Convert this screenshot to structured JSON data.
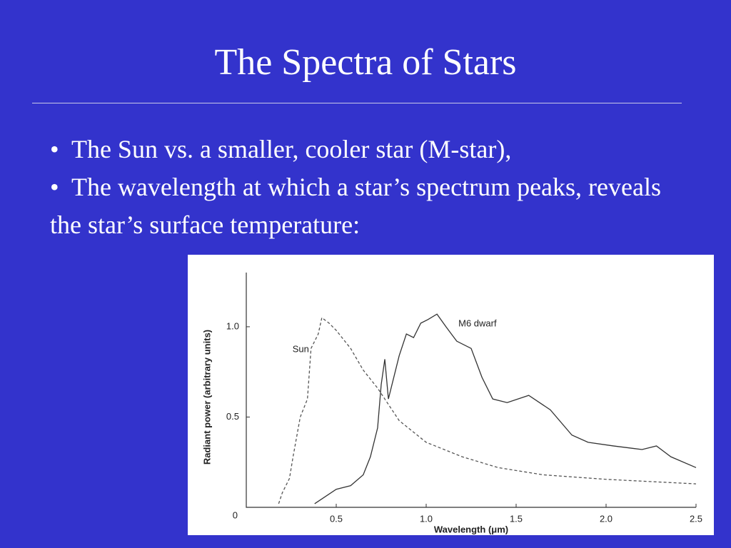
{
  "title": "The Spectra of Stars",
  "bullets": [
    "The Sun vs. a smaller, cooler star (M-star),",
    "The wavelength at which a star’s spectrum peaks, reveals the star’s surface temperature:"
  ],
  "chart_data": {
    "type": "line",
    "x_label": "Wavelength (μm)",
    "y_label": "Radiant power (arbitrary units)",
    "xlim": [
      0,
      2.5
    ],
    "ylim": [
      0,
      1.3
    ],
    "xticks": [
      0.5,
      {
        "value": 1,
        "label": "1.0"
      },
      1.5,
      {
        "value": 2,
        "label": "2.0"
      },
      2.5
    ],
    "yticks": [
      0,
      0.5,
      {
        "value": 1,
        "label": "1.0"
      }
    ],
    "series": [
      {
        "name": "Sun",
        "color": "#555555",
        "dashed": true,
        "x": [
          0.18,
          0.2,
          0.24,
          0.26,
          0.3,
          0.34,
          0.36,
          0.4,
          0.42,
          0.46,
          0.5,
          0.58,
          0.65,
          0.73,
          0.85,
          1.0,
          1.2,
          1.4,
          1.65,
          2.0,
          2.5
        ],
        "values": [
          0.02,
          0.08,
          0.16,
          0.28,
          0.5,
          0.6,
          0.88,
          0.96,
          1.05,
          1.02,
          0.98,
          0.88,
          0.76,
          0.66,
          0.48,
          0.36,
          0.28,
          0.22,
          0.18,
          0.155,
          0.13
        ]
      },
      {
        "name": "M6 dwarf",
        "color": "#333333",
        "dashed": false,
        "x": [
          0.38,
          0.5,
          0.58,
          0.65,
          0.69,
          0.73,
          0.75,
          0.77,
          0.79,
          0.83,
          0.85,
          0.89,
          0.93,
          0.97,
          1.01,
          1.06,
          1.11,
          1.17,
          1.25,
          1.31,
          1.37,
          1.45,
          1.57,
          1.69,
          1.81,
          1.9,
          2.04,
          2.2,
          2.28,
          2.36,
          2.5
        ],
        "values": [
          0.02,
          0.1,
          0.12,
          0.18,
          0.28,
          0.44,
          0.68,
          0.82,
          0.6,
          0.76,
          0.84,
          0.96,
          0.94,
          1.02,
          1.04,
          1.07,
          1.0,
          0.92,
          0.88,
          0.72,
          0.6,
          0.58,
          0.62,
          0.54,
          0.4,
          0.36,
          0.34,
          0.32,
          0.34,
          0.28,
          0.22
        ]
      }
    ]
  }
}
